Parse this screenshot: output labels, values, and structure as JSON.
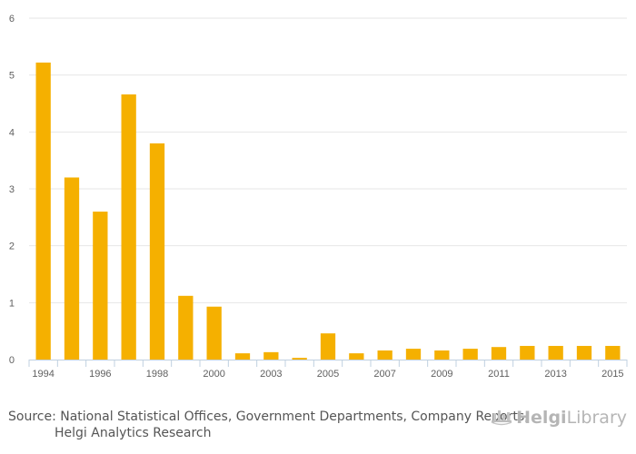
{
  "chart_data": {
    "type": "bar",
    "x": [
      1994,
      1995,
      1996,
      1997,
      1998,
      1999,
      2000,
      2001,
      2003,
      2004,
      2005,
      2006,
      2007,
      2008,
      2009,
      2010,
      2011,
      2012,
      2013,
      2014,
      2015
    ],
    "values": [
      5.22,
      3.2,
      2.6,
      4.66,
      3.8,
      1.12,
      0.93,
      0.11,
      0.13,
      0.03,
      0.46,
      0.11,
      0.16,
      0.19,
      0.16,
      0.19,
      0.22,
      0.24,
      0.24,
      0.24,
      0.24
    ],
    "x_tick_labels": [
      "1994",
      "1996",
      "1998",
      "2000",
      "2003",
      "2005",
      "2007",
      "2009",
      "2011",
      "2013",
      "2015"
    ],
    "y_ticks": [
      "0",
      "1",
      "2",
      "3",
      "4",
      "5",
      "6"
    ],
    "ylim": [
      0,
      6
    ],
    "grid": true,
    "bar_color": "#f5b000",
    "title": "",
    "xlabel": "",
    "ylabel": ""
  },
  "footer": {
    "source_line1": "Source: National Statistical Offices, Government Departments, Company Reports,",
    "source_line2": "Helgi Analytics Research"
  },
  "logo": {
    "brand_a": "Helgi",
    "brand_b": "Library",
    "icon": "library-logo-icon"
  }
}
